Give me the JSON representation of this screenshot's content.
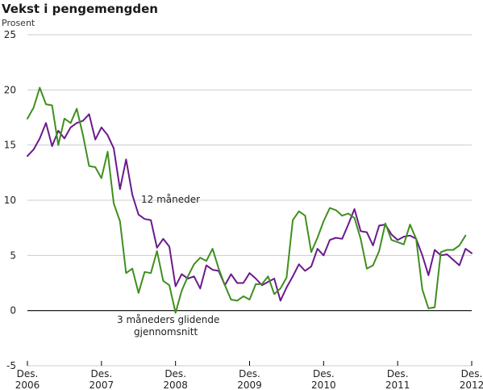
{
  "chart_data": {
    "type": "line",
    "title": "Vekst i pengemengden",
    "ylabel": "Prosent",
    "xlabel": "",
    "ylim": [
      -5,
      25
    ],
    "yticks": [
      -5,
      0,
      5,
      10,
      15,
      20,
      25
    ],
    "xticks": [
      {
        "label": [
          "Des.",
          "2006"
        ],
        "index": 0
      },
      {
        "label": [
          "Des.",
          "2007"
        ],
        "index": 12
      },
      {
        "label": [
          "Des.",
          "2008"
        ],
        "index": 24
      },
      {
        "label": [
          "Des.",
          "2009"
        ],
        "index": 36
      },
      {
        "label": [
          "Des.",
          "2010"
        ],
        "index": 48
      },
      {
        "label": [
          "Des.",
          "2011"
        ],
        "index": 60
      },
      {
        "label": [
          "Des.",
          "2012"
        ],
        "index": 72
      }
    ],
    "grid": "horizontal",
    "colors": {
      "twelve_month": "#6b1a8c",
      "three_month": "#3f8f1f",
      "grid": "#cccccc",
      "zero_line": "#000000"
    },
    "series": [
      {
        "name": "12 måneder",
        "color": "#6b1a8c",
        "values": [
          14.0,
          14.6,
          15.6,
          17.0,
          14.9,
          16.3,
          15.6,
          16.6,
          17.0,
          17.2,
          17.8,
          15.5,
          16.6,
          15.9,
          14.7,
          11.0,
          13.7,
          10.5,
          8.7,
          8.3,
          8.2,
          5.7,
          6.5,
          5.8,
          2.2,
          3.3,
          2.9,
          3.1,
          2.0,
          4.1,
          3.7,
          3.6,
          2.3,
          3.3,
          2.5,
          2.5,
          3.4,
          2.9,
          2.3,
          2.6,
          2.9,
          0.9,
          2.1,
          3.1,
          4.2,
          3.6,
          4.0,
          5.6,
          5.0,
          6.4,
          6.6,
          6.5,
          7.8,
          9.2,
          7.2,
          7.1,
          5.9,
          7.7,
          7.8,
          6.9,
          6.4,
          6.7,
          6.8,
          6.5,
          5.0,
          3.2,
          5.5,
          5.0,
          5.1,
          4.6,
          4.1,
          5.6,
          5.2
        ]
      },
      {
        "name": "3 måneders glidende gjennomsnitt",
        "color": "#3f8f1f",
        "values": [
          17.4,
          18.4,
          20.2,
          18.7,
          18.6,
          15.0,
          17.4,
          17.0,
          18.3,
          15.9,
          13.1,
          13.0,
          12.0,
          14.4,
          9.7,
          8.1,
          3.4,
          3.8,
          1.6,
          3.5,
          3.4,
          5.4,
          2.7,
          2.3,
          -0.2,
          1.8,
          3.1,
          4.2,
          4.8,
          4.5,
          5.6,
          3.8,
          2.3,
          1.0,
          0.9,
          1.3,
          1.0,
          2.4,
          2.4,
          3.1,
          1.5,
          2.0,
          3.0,
          8.2,
          9.0,
          8.6,
          5.3,
          6.6,
          8.1,
          9.3,
          9.1,
          8.6,
          8.8,
          8.4,
          6.5,
          3.8,
          4.1,
          5.4,
          7.9,
          6.4,
          6.2,
          6.0,
          7.8,
          6.5,
          1.9,
          0.2,
          0.3,
          5.3,
          5.5,
          5.5,
          5.9,
          6.8
        ]
      }
    ],
    "annotations": [
      {
        "text": "12 måneder",
        "series": "12 måneder"
      },
      {
        "text": [
          "3 måneders glidende",
          "gjennomsnitt"
        ],
        "series": "3 måneders glidende gjennomsnitt"
      }
    ]
  }
}
